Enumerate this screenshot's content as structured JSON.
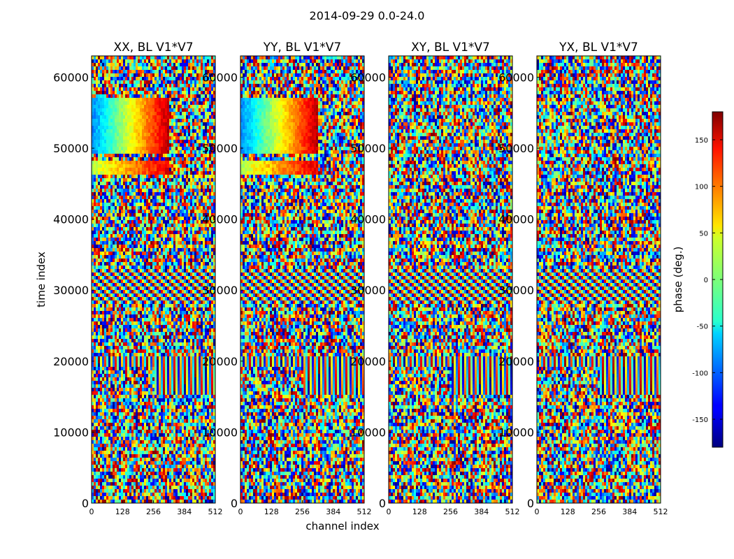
{
  "figure": {
    "suptitle": "2014-09-29 0.0-24.0",
    "ylabel": "time index",
    "xlabel": "channel index"
  },
  "chart_data": [
    {
      "type": "heatmap",
      "title": "XX, BL V1*V7",
      "xlabel": "channel index",
      "ylabel": "time index",
      "xlim": [
        0,
        512
      ],
      "ylim": [
        0,
        63000
      ],
      "x_ticks": [
        "0",
        "128",
        "256",
        "384",
        "512"
      ],
      "y_ticks": [
        "0",
        "10000",
        "20000",
        "30000",
        "40000",
        "50000",
        "60000"
      ]
    },
    {
      "type": "heatmap",
      "title": "YY, BL V1*V7",
      "xlim": [
        0,
        512
      ],
      "ylim": [
        0,
        63000
      ],
      "x_ticks": [
        "0",
        "128",
        "256",
        "384",
        "512"
      ],
      "y_ticks": [
        "0",
        "10000",
        "20000",
        "30000",
        "40000",
        "50000",
        "60000"
      ]
    },
    {
      "type": "heatmap",
      "title": "XY, BL V1*V7",
      "xlim": [
        0,
        512
      ],
      "ylim": [
        0,
        63000
      ],
      "x_ticks": [
        "0",
        "128",
        "256",
        "384",
        "512"
      ],
      "y_ticks": [
        "0",
        "10000",
        "20000",
        "30000",
        "40000",
        "50000",
        "60000"
      ]
    },
    {
      "type": "heatmap",
      "title": "YX, BL V1*V7",
      "xlim": [
        0,
        512
      ],
      "ylim": [
        0,
        63000
      ],
      "x_ticks": [
        "0",
        "128",
        "256",
        "384",
        "512"
      ],
      "y_ticks": [
        "0",
        "10000",
        "20000",
        "30000",
        "40000",
        "50000",
        "60000"
      ]
    }
  ],
  "colorbar": {
    "label": "phase (deg.)",
    "vmin": -180,
    "vmax": 180,
    "ticks": [
      "-150",
      "-100",
      "-50",
      "0",
      "50",
      "100",
      "150"
    ],
    "tick_values": [
      -150,
      -100,
      -50,
      0,
      50,
      100,
      150
    ],
    "colormap": "jet"
  }
}
